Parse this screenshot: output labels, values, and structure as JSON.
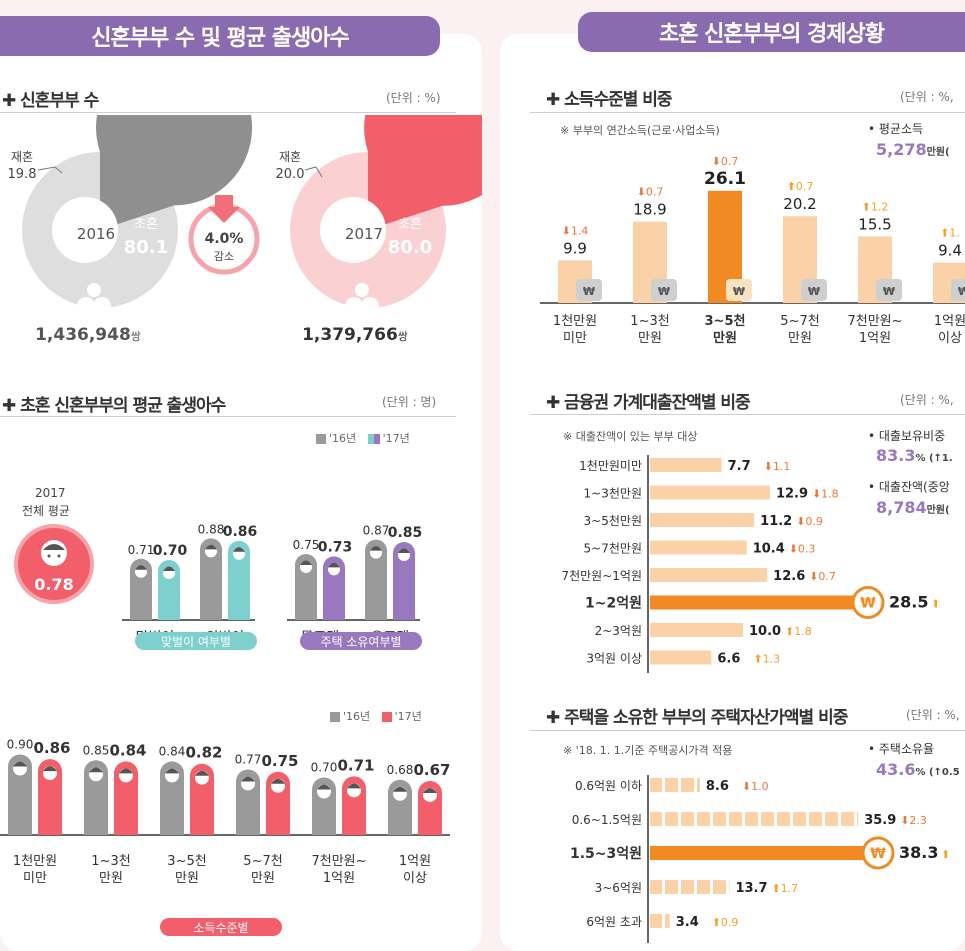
{
  "left": {
    "banner": "신혼부부 수 및 평균 출생아수",
    "couples": {
      "title": "신혼부부 수",
      "unit": "(단위 : %)",
      "y2016": {
        "year": "2016",
        "first_label": "초혼",
        "first": "80.1",
        "re_label": "재혼",
        "re": "19.8",
        "first_value": 80.1,
        "count": "1,436,948",
        "count_unit": "쌍"
      },
      "y2017": {
        "year": "2017",
        "first_label": "초혼",
        "first": "80.0",
        "re_label": "재혼",
        "re": "20.0",
        "first_value": 80.0,
        "count": "1,379,766",
        "count_unit": "쌍"
      },
      "change": "4.0%",
      "change_label": "감소"
    },
    "births": {
      "title": "초혼 신혼부부의 평균 출생아수",
      "unit": "(단위 : 명)",
      "legend16": "'16년",
      "legend17": "'17년",
      "overall_label1": "2017",
      "overall_label2": "전체 평균",
      "overall_value": "0.78",
      "dual_tag": "맞벌이 여부별",
      "house_tag": "주택 소유여부별",
      "income_tag": "소득수준별"
    }
  },
  "right": {
    "banner": "초혼 신혼부부의 경제상황",
    "income": {
      "title": "소득수준별 비중",
      "unit": "(단위 : %,",
      "note": "※ 부부의 연간소득(근로·사업소득)",
      "avg_label": "• 평균소득",
      "avg_value": "5,278",
      "avg_unit": "만원("
    },
    "loan": {
      "title": "금융권 가계대출잔액별 비중",
      "unit": "(단위 : %,",
      "note": "※ 대출잔액이 있는 부부 대상",
      "ratio_label": "• 대출보유비중",
      "ratio_value": "83.3",
      "ratio_unit": "% (↑1.",
      "median_label": "• 대출잔액(중앙",
      "median_value": "8,784",
      "median_unit": "만원("
    },
    "house": {
      "title": "주택을 소유한 부부의 주택자산가액별 비중",
      "unit": "(단위 : %,",
      "note": "※ '18. 1. 1.기준 주택공시가격 적용",
      "own_label": "• 주택소유율",
      "own_value": "43.6",
      "own_unit": "% (↑0.5"
    }
  },
  "colors": {
    "purple": "#8a6bb0",
    "gray": "#9a9a9a",
    "teal": "#7ed0cf",
    "violet": "#9a78c0",
    "pink": "#f25f6a",
    "peach": "#fbd1a8",
    "orange": "#f28a23",
    "up": "#f2a12a",
    "down": "#e8793a"
  },
  "chart_data": [
    {
      "type": "pie",
      "title": "신혼부부 수 2016",
      "categories": [
        "초혼",
        "재혼"
      ],
      "values": [
        80.1,
        19.8
      ]
    },
    {
      "type": "pie",
      "title": "신혼부부 수 2017",
      "categories": [
        "초혼",
        "재혼"
      ],
      "values": [
        80.0,
        20.0
      ]
    },
    {
      "type": "bar",
      "title": "맞벌이 여부별 평균 출생아수",
      "categories": [
        "맞벌이",
        "외벌이"
      ],
      "series": [
        {
          "name": "'16년",
          "values": [
            0.71,
            0.88
          ]
        },
        {
          "name": "'17년",
          "values": [
            0.7,
            0.86
          ]
        }
      ]
    },
    {
      "type": "bar",
      "title": "주택 소유여부별 평균 출생아수",
      "categories": [
        "무주택",
        "유주택"
      ],
      "series": [
        {
          "name": "'16년",
          "values": [
            0.75,
            0.87
          ]
        },
        {
          "name": "'17년",
          "values": [
            0.73,
            0.85
          ]
        }
      ]
    },
    {
      "type": "bar",
      "title": "소득수준별 평균 출생아수",
      "categories": [
        "1천만원 미만",
        "1~3천 만원",
        "3~5천 만원",
        "5~7천 만원",
        "7천만원~ 1억원",
        "1억원 이상"
      ],
      "series": [
        {
          "name": "'16년",
          "values": [
            0.9,
            0.85,
            0.84,
            0.77,
            0.7,
            0.68
          ]
        },
        {
          "name": "'17년",
          "values": [
            0.86,
            0.84,
            0.82,
            0.75,
            0.71,
            0.67
          ]
        }
      ]
    },
    {
      "type": "bar",
      "title": "소득수준별 비중",
      "categories": [
        "1천만원 미만",
        "1~3천 만원",
        "3~5천 만원",
        "5~7천 만원",
        "7천만원~ 1억원",
        "1억원 이상"
      ],
      "values": [
        9.9,
        18.9,
        26.1,
        20.2,
        15.5,
        9.4
      ],
      "changes": [
        "1.4",
        "0.7",
        "0.7",
        "0.7",
        "1.2",
        "1."
      ],
      "directions": [
        "down",
        "down",
        "down",
        "up",
        "up",
        "up"
      ]
    },
    {
      "type": "bar",
      "title": "금융권 가계대출잔액별 비중",
      "categories": [
        "1천만원미만",
        "1~3천만원",
        "3~5천만원",
        "5~7천만원",
        "7천만원~1억원",
        "1~2억원",
        "2~3억원",
        "3억원 이상"
      ],
      "values": [
        7.7,
        12.9,
        11.2,
        10.4,
        12.6,
        28.5,
        10.0,
        6.6
      ],
      "changes": [
        "1.1",
        "1.8",
        "0.9",
        "0.3",
        "0.7",
        "",
        "1.8",
        "1.3"
      ],
      "directions": [
        "down",
        "down",
        "down",
        "down",
        "down",
        "up",
        "up",
        "up"
      ]
    },
    {
      "type": "bar",
      "title": "주택을 소유한 부부의 주택자산가액별 비중",
      "categories": [
        "0.6억원 이하",
        "0.6~1.5억원",
        "1.5~3억원",
        "3~6억원",
        "6억원 초과"
      ],
      "values": [
        8.6,
        35.9,
        38.3,
        13.7,
        3.4
      ],
      "changes": [
        "1.0",
        "2.3",
        "",
        "1.7",
        "0.9"
      ],
      "directions": [
        "down",
        "down",
        "up",
        "up",
        "up"
      ]
    }
  ]
}
